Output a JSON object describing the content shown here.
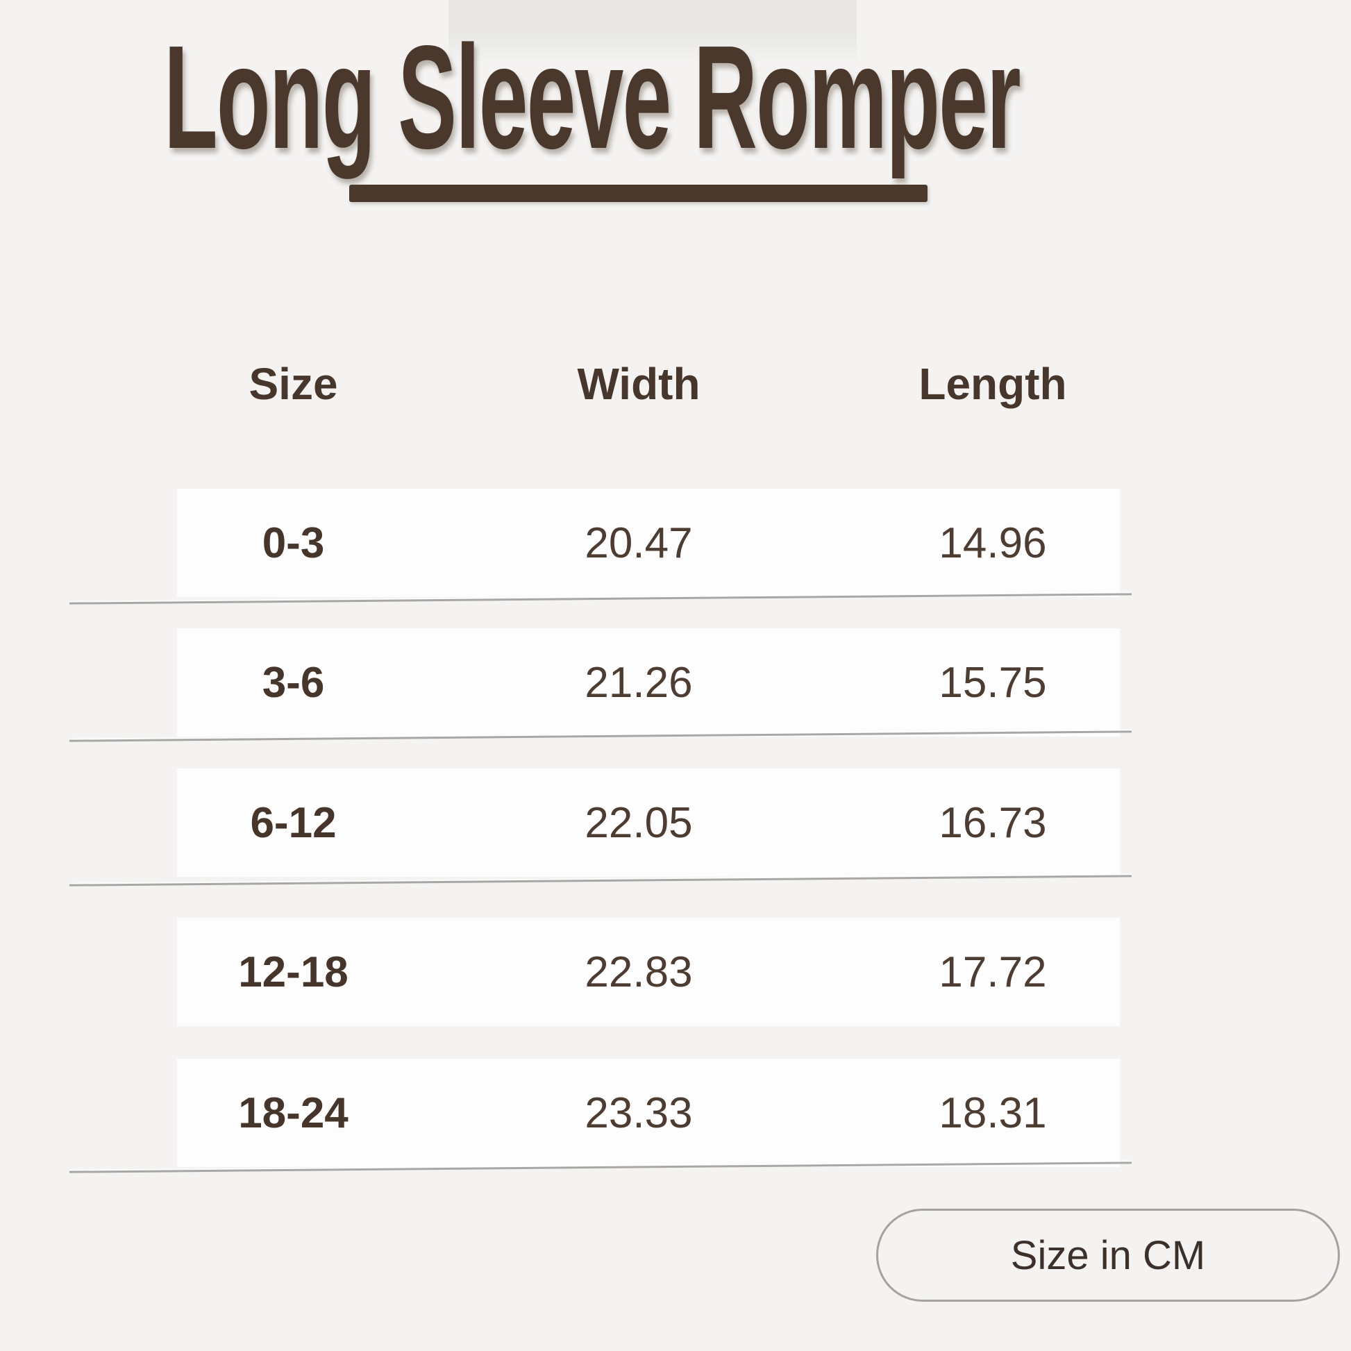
{
  "title": "Long Sleeve Romper",
  "unit_badge": "Size in CM",
  "colors": {
    "background": "#f4f3f2",
    "accent_brown": "#4a382c",
    "row_background": "#fdfdfd",
    "divider_gray": "#a8a7a5",
    "badge_border": "#a5a2a0"
  },
  "chart_data": {
    "type": "table",
    "title": "Long Sleeve Romper",
    "columns": [
      "Size",
      "Width",
      "Length"
    ],
    "rows": [
      [
        "0-3",
        "20.47",
        "14.96"
      ],
      [
        "3-6",
        "21.26",
        "15.75"
      ],
      [
        "6-12",
        "22.05",
        "16.73"
      ],
      [
        "12-18",
        "22.83",
        "17.72"
      ],
      [
        "18-24",
        "23.33",
        "18.31"
      ]
    ],
    "unit_note": "Size in CM",
    "layout": "white row bands on light gray background, thin slanted gray dividers after rows 1, 2, 3 and 5"
  }
}
